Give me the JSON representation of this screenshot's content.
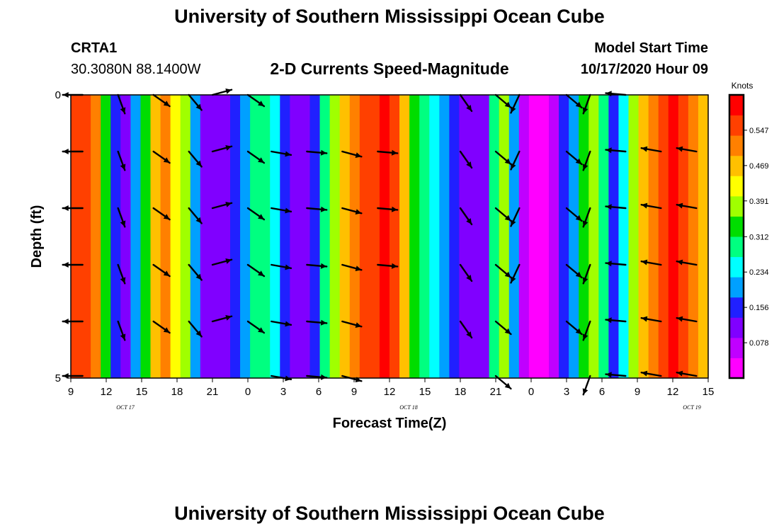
{
  "header": {
    "title": "University of Southern Mississippi Ocean Cube",
    "station": "CRTA1",
    "coords": "30.3080N 88.1400W",
    "chart_title": "2-D Currents Speed-Magnitude",
    "model_start_label": "Model Start Time",
    "model_start_value": "10/17/2020 Hour 09"
  },
  "footer": {
    "title": "University of Southern Mississippi Ocean Cube"
  },
  "colors": {
    "palette": [
      "#ff00ff",
      "#c000ff",
      "#8000ff",
      "#2020ff",
      "#00a0ff",
      "#00ffff",
      "#00ff80",
      "#00dd00",
      "#a0ff00",
      "#ffff00",
      "#ffc000",
      "#ff8000",
      "#ff4000",
      "#ff0000"
    ]
  },
  "chart_data": {
    "type": "heatmap",
    "title": "2-D Currents Speed-Magnitude",
    "xlabel": "Forecast Time(Z)",
    "ylabel": "Depth (ft)",
    "x_tick_labels": [
      "9",
      "12",
      "15",
      "18",
      "21",
      "0",
      "3",
      "6",
      "9",
      "12",
      "15",
      "18",
      "21",
      "0",
      "3",
      "6",
      "9",
      "12",
      "15"
    ],
    "date_labels": [
      "OCT 17",
      "OCT 18",
      "OCT 19"
    ],
    "y_tick_labels": [
      "0",
      "5"
    ],
    "ylim": [
      0,
      5
    ],
    "x_range_hours": [
      0,
      54
    ],
    "colorbar": {
      "label": "Knots",
      "ticks": [
        "0.547",
        "0.469",
        "0.391",
        "0.312",
        "0.234",
        "0.156",
        "0.078"
      ],
      "range": [
        0,
        0.625
      ]
    },
    "column_speeds_knots": [
      0.58,
      0.56,
      0.5,
      0.34,
      0.16,
      0.12,
      0.22,
      0.34,
      0.46,
      0.5,
      0.43,
      0.36,
      0.22,
      0.1,
      0.09,
      0.12,
      0.16,
      0.21,
      0.27,
      0.31,
      0.24,
      0.16,
      0.12,
      0.09,
      0.17,
      0.28,
      0.37,
      0.45,
      0.5,
      0.54,
      0.58,
      0.61,
      0.58,
      0.48,
      0.34,
      0.28,
      0.24,
      0.22,
      0.16,
      0.1,
      0.09,
      0.13,
      0.3,
      0.36,
      0.2,
      0.07,
      0.03,
      0.04,
      0.08,
      0.14,
      0.22,
      0.32,
      0.4,
      0.3,
      0.14,
      0.23,
      0.37,
      0.47,
      0.53,
      0.58,
      0.61,
      0.58,
      0.51,
      0.45
    ],
    "vector_depth_rows_ft": [
      0,
      1,
      2,
      3,
      4,
      5
    ],
    "vectors": [
      {
        "hour": 1,
        "dir_deg": 270,
        "rows": [
          0,
          1,
          2,
          3,
          4,
          5
        ]
      },
      {
        "hour": 4,
        "dir_deg": 160,
        "rows": [
          0,
          1,
          2,
          3,
          4
        ]
      },
      {
        "hour": 7,
        "dir_deg": 125,
        "rows": [
          0,
          1,
          2,
          3,
          4
        ]
      },
      {
        "hour": 10,
        "dir_deg": 140,
        "rows": [
          0,
          1,
          2,
          3,
          4
        ]
      },
      {
        "hour": 12,
        "dir_deg": 75,
        "rows": [
          0,
          1,
          2,
          3,
          4
        ]
      },
      {
        "hour": 15,
        "dir_deg": 125,
        "rows": [
          0,
          1,
          2,
          3,
          4
        ]
      },
      {
        "hour": 17,
        "dir_deg": 100,
        "rows": [
          1,
          2,
          3,
          4,
          5
        ]
      },
      {
        "hour": 20,
        "dir_deg": 95,
        "rows": [
          1,
          2,
          3,
          4,
          5
        ]
      },
      {
        "hour": 23,
        "dir_deg": 105,
        "rows": [
          1,
          2,
          3,
          4,
          5
        ]
      },
      {
        "hour": 26,
        "dir_deg": 95,
        "rows": [
          1,
          2,
          3
        ]
      },
      {
        "hour": 33,
        "dir_deg": 145,
        "rows": [
          0,
          1,
          2,
          3,
          4
        ]
      },
      {
        "hour": 36,
        "dir_deg": 130,
        "rows": [
          0,
          1,
          2,
          3,
          4,
          5
        ]
      },
      {
        "hour": 38,
        "dir_deg": 205,
        "rows": [
          0,
          1,
          2,
          3
        ]
      },
      {
        "hour": 42,
        "dir_deg": 130,
        "rows": [
          0,
          1,
          2,
          3,
          4
        ]
      },
      {
        "hour": 44,
        "dir_deg": 200,
        "rows": [
          0,
          1,
          2,
          3,
          4,
          5
        ]
      },
      {
        "hour": 47,
        "dir_deg": 275,
        "rows": [
          0,
          1,
          2,
          3,
          4,
          5
        ]
      },
      {
        "hour": 50,
        "dir_deg": 280,
        "rows": [
          1,
          2,
          3,
          4,
          5
        ]
      },
      {
        "hour": 53,
        "dir_deg": 280,
        "rows": [
          1,
          2,
          3,
          4,
          5
        ]
      }
    ]
  }
}
